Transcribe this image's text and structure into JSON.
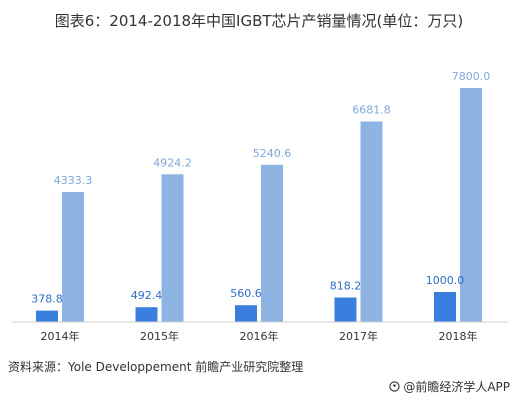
{
  "title": "图表6：2014-2018年中国IGBT芯片产销量情况(单位：万只)",
  "source": "资料来源：Yole Developpement 前瞻产业研究院整理",
  "brand": "@前瞻经济学人APP",
  "colors": {
    "series_dark": "#3a7fde",
    "series_light": "#8db3e2",
    "label_dark": "#2e6fc9",
    "label_light": "#7ea8dc",
    "axis": "#d0d0d0"
  },
  "chart_data": {
    "type": "bar",
    "categories": [
      "2014年",
      "2015年",
      "2016年",
      "2017年",
      "2018年"
    ],
    "series": [
      {
        "values": [
          378.8,
          492.4,
          560.6,
          818.2,
          1000.0
        ],
        "labels": [
          "378.8",
          "492.4",
          "560.6",
          "818.2",
          "1000.0"
        ]
      },
      {
        "values": [
          4333.3,
          4924.2,
          5240.6,
          6681.8,
          7800.0
        ],
        "labels": [
          "4333.3",
          "4924.2",
          "5240.6",
          "6681.8",
          "7800.0"
        ]
      }
    ],
    "ylim": [
      0,
      8000
    ],
    "grid": false,
    "legend": "none"
  }
}
